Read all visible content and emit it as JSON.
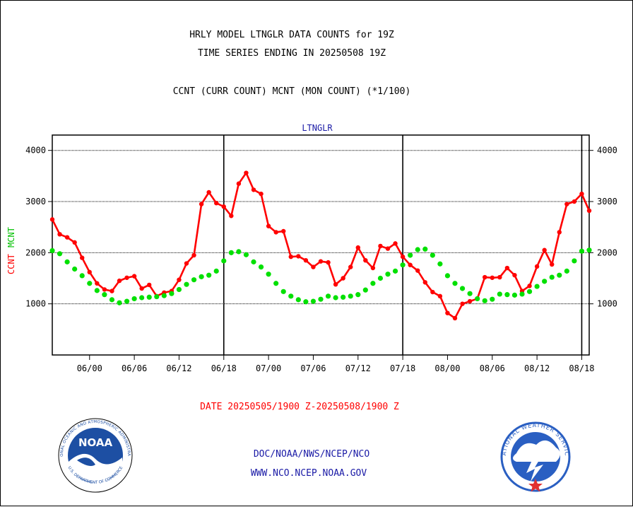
{
  "chart_data": {
    "type": "line",
    "title_lines": [
      "HRLY MODEL LTNGLR DATA COUNTS for 19Z",
      "TIME SERIES ENDING IN 20250508 19Z"
    ],
    "subtitle": "CCNT (CURR COUNT) MCNT (MON COUNT) (*1/100)",
    "panel_label": "LTNGLR",
    "ylabel_parts": [
      "CCNT",
      "MCNT"
    ],
    "xlabel": "DATE 20250505/1900 Z-20250508/1900 Z",
    "x_tick_labels": [
      "06/00",
      "06/06",
      "06/12",
      "06/18",
      "07/00",
      "07/06",
      "07/12",
      "07/18",
      "08/00",
      "08/06",
      "08/12",
      "08/18"
    ],
    "x_tick_hours": [
      5,
      11,
      17,
      23,
      29,
      35,
      41,
      47,
      53,
      59,
      65,
      71
    ],
    "day_boundary_hours": [
      23,
      47,
      71
    ],
    "x_range_hours": [
      0,
      72
    ],
    "y_ticks": [
      1000,
      2000,
      3000,
      4000
    ],
    "y_tick_labels": [
      "1000",
      "2000",
      "3000",
      "4000"
    ],
    "ylim": [
      0,
      4300
    ],
    "grid": "horizontal",
    "series": [
      {
        "name": "CCNT",
        "color": "#ff0000",
        "values": [
          2650,
          2360,
          2300,
          2200,
          1900,
          1620,
          1400,
          1280,
          1250,
          1450,
          1510,
          1540,
          1300,
          1370,
          1150,
          1220,
          1250,
          1470,
          1790,
          1950,
          2950,
          3180,
          2970,
          2900,
          2720,
          3350,
          3560,
          3230,
          3150,
          2520,
          2400,
          2420,
          1920,
          1930,
          1850,
          1720,
          1830,
          1810,
          1380,
          1500,
          1720,
          2100,
          1850,
          1700,
          2130,
          2080,
          2180,
          1920,
          1760,
          1650,
          1420,
          1230,
          1150,
          820,
          720,
          1000,
          1050,
          1100,
          1520,
          1510,
          1520,
          1700,
          1560,
          1250,
          1350,
          1730,
          2050,
          1770,
          2400,
          2950,
          3000,
          3150,
          2820
        ]
      },
      {
        "name": "MCNT",
        "color": "#00e000",
        "values": [
          2040,
          1980,
          1820,
          1680,
          1550,
          1400,
          1260,
          1180,
          1080,
          1020,
          1050,
          1100,
          1120,
          1130,
          1140,
          1160,
          1200,
          1280,
          1380,
          1470,
          1530,
          1560,
          1640,
          1840,
          2000,
          2020,
          1960,
          1820,
          1720,
          1580,
          1400,
          1240,
          1150,
          1080,
          1040,
          1050,
          1090,
          1150,
          1120,
          1130,
          1150,
          1180,
          1270,
          1400,
          1500,
          1580,
          1640,
          1760,
          1950,
          2060,
          2070,
          1950,
          1780,
          1550,
          1400,
          1300,
          1200,
          1100,
          1060,
          1090,
          1190,
          1180,
          1170,
          1190,
          1240,
          1340,
          1440,
          1520,
          1560,
          1640,
          1840,
          2030,
          2050
        ]
      }
    ]
  },
  "footer": {
    "org_path": "DOC/NOAA/NWS/NCEP/NCO",
    "website": "WWW.NCO.NCEP.NOAA.GOV",
    "noaa_logo_text": "NOAA",
    "noaa_seal_ring_text": "NATIONAL OCEANIC AND ATMOSPHERIC ADMINISTRATION",
    "noaa_seal_bottom_text": "U.S. DEPARTMENT OF COMMERCE",
    "nws_seal_ring_text": "NATIONAL WEATHER SERVICE"
  },
  "colors": {
    "title": "#000000",
    "axis_panel_label": "#1a1aa6",
    "ccnt": "#ff0000",
    "mcnt": "#00e000",
    "noaa_blue": "#1d4fa3",
    "nws_blue": "#2a5fc2"
  }
}
